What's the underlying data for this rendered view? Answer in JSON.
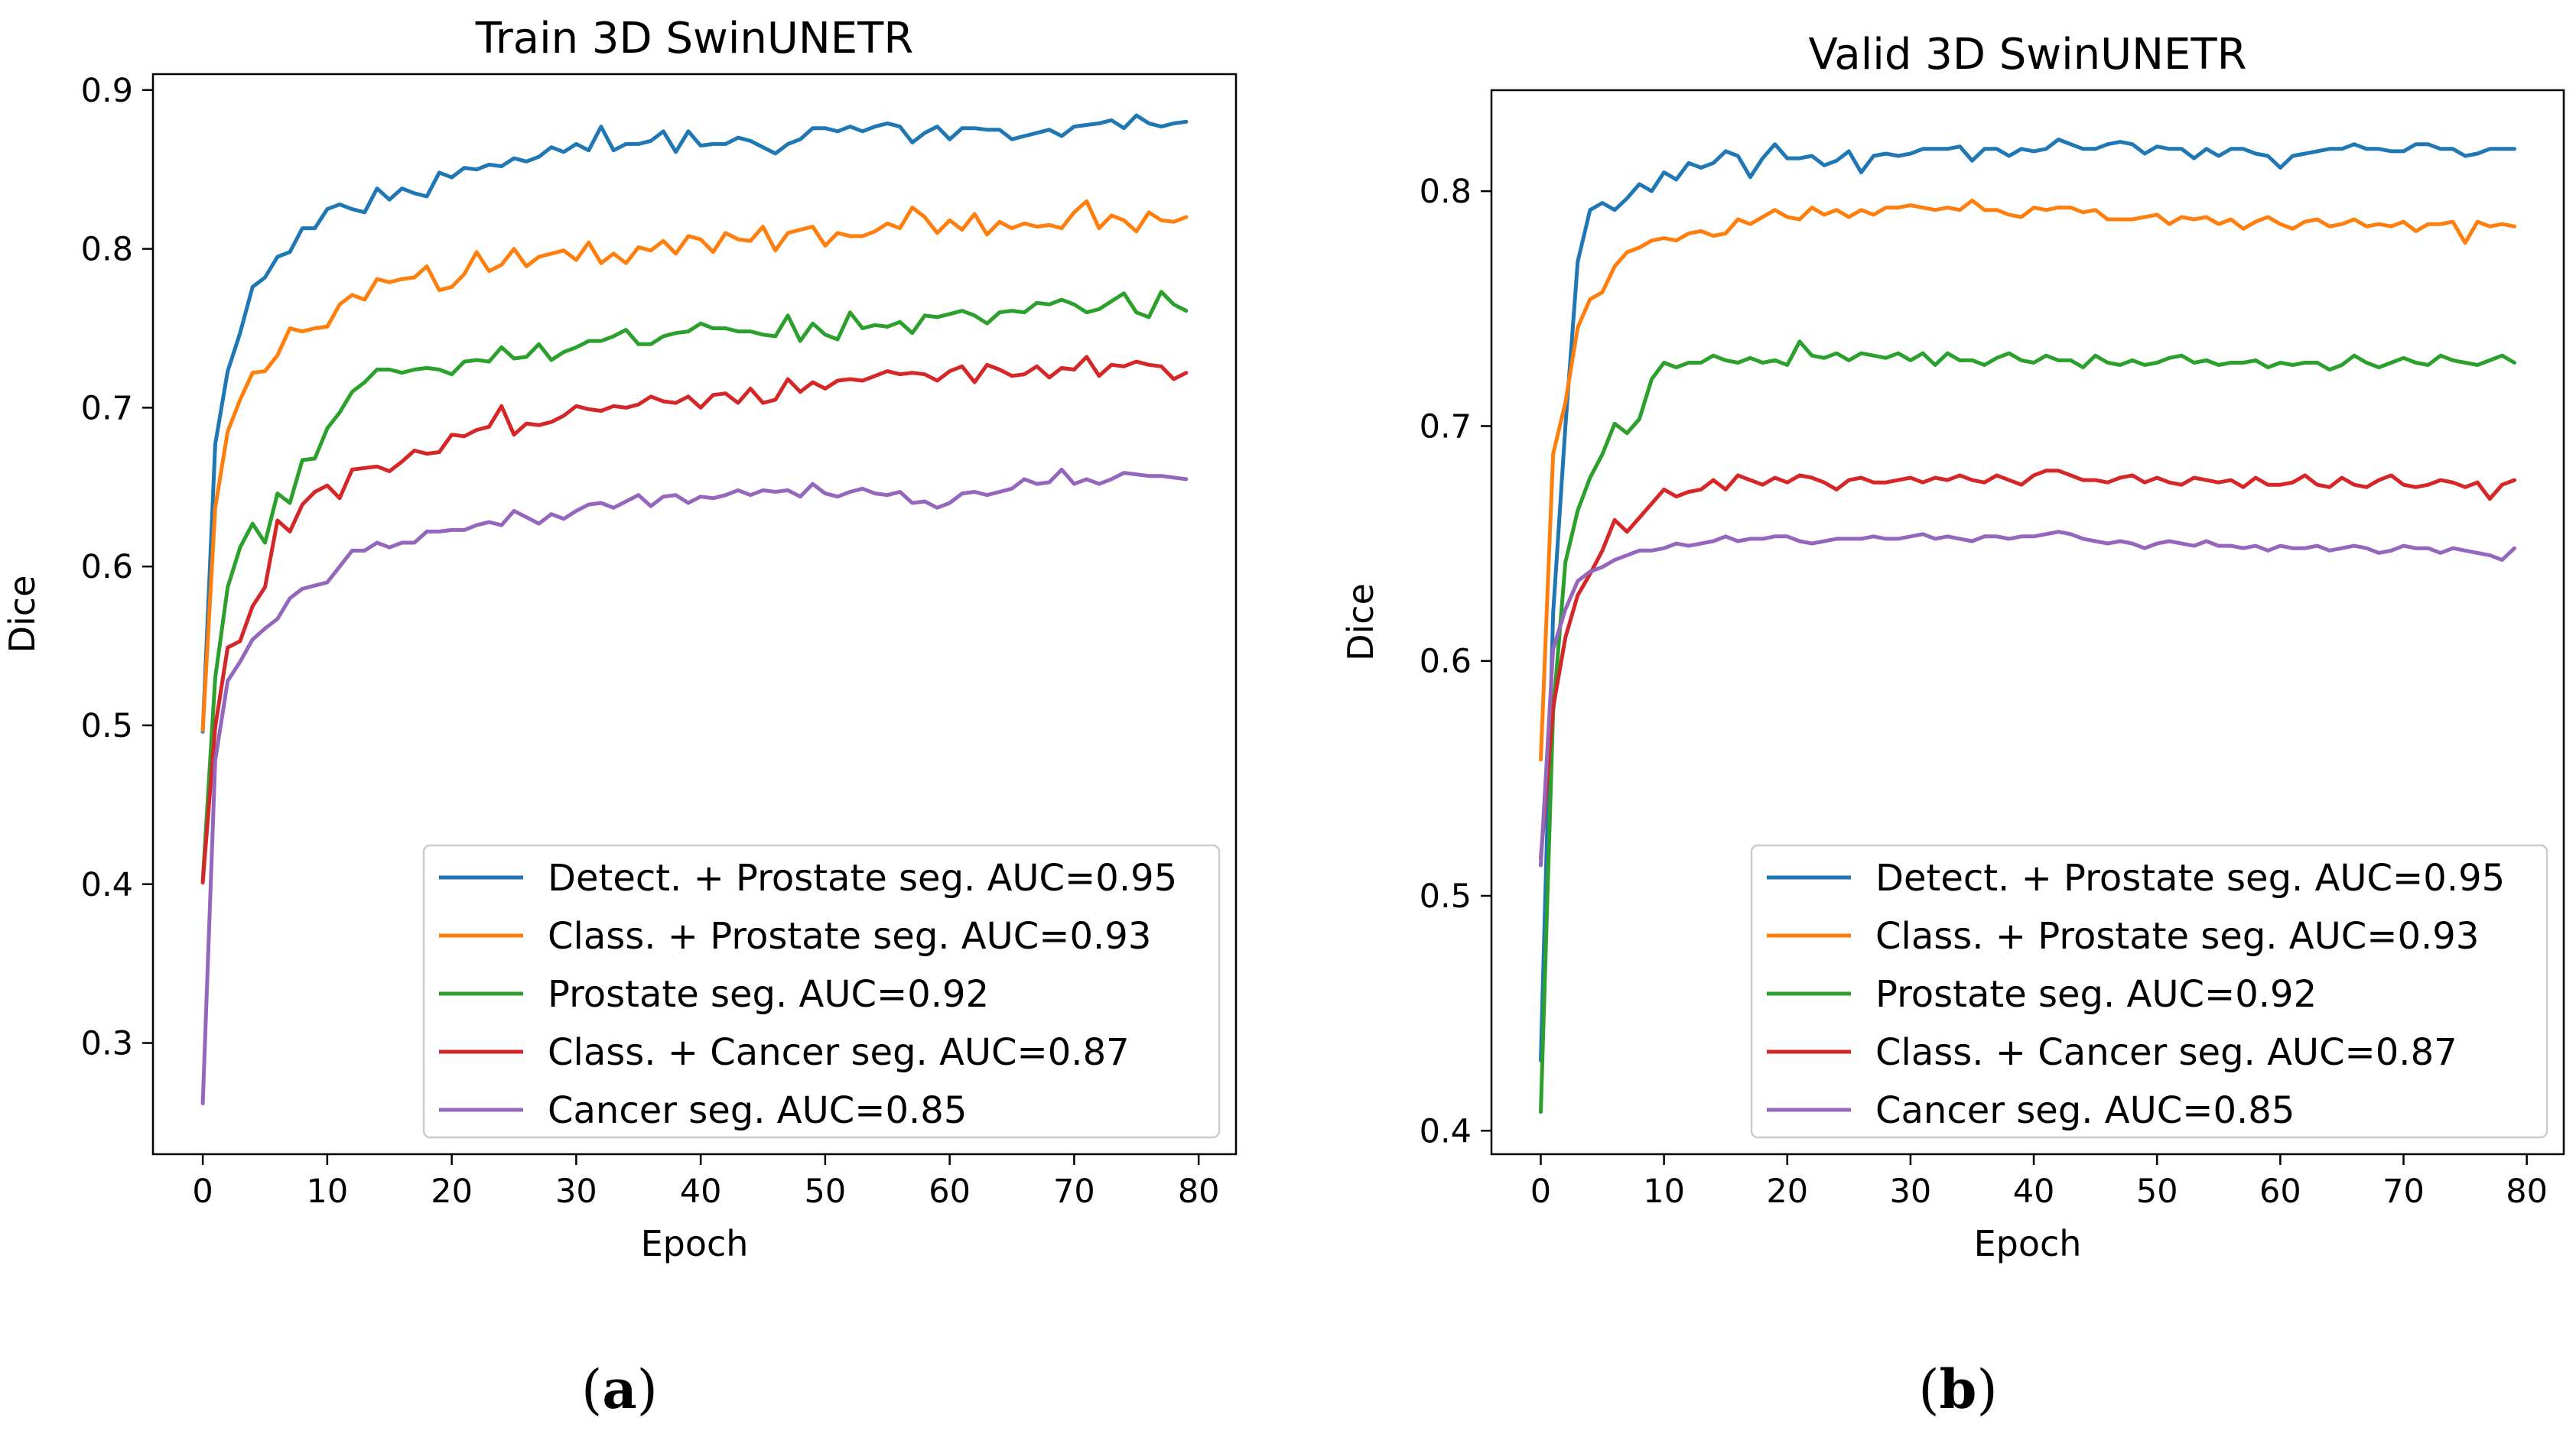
{
  "colors": {
    "detect_prostate": "#1f77b4",
    "class_prostate": "#ff7f0e",
    "prostate": "#2ca02c",
    "class_cancer": "#d62728",
    "cancer": "#9467bd"
  },
  "chart_data": [
    {
      "type": "line",
      "title": "Train 3D SwinUNETR",
      "xlabel": "Epoch",
      "ylabel": "Dice",
      "xlim": [
        -4,
        83
      ],
      "ylim": [
        0.23,
        0.91
      ],
      "xticks": [
        0,
        10,
        20,
        30,
        40,
        50,
        60,
        70,
        80
      ],
      "yticks": [
        0.3,
        0.4,
        0.5,
        0.6,
        0.7,
        0.8,
        0.9
      ],
      "grid": false,
      "legend_position": "lower-right",
      "caption": "a",
      "x": [
        0,
        1,
        2,
        3,
        4,
        5,
        6,
        7,
        8,
        9,
        10,
        11,
        12,
        13,
        14,
        15,
        16,
        17,
        18,
        19,
        20,
        21,
        22,
        23,
        24,
        25,
        26,
        27,
        28,
        29,
        30,
        31,
        32,
        33,
        34,
        35,
        36,
        37,
        38,
        39,
        40,
        41,
        42,
        43,
        44,
        45,
        46,
        47,
        48,
        49,
        50,
        51,
        52,
        53,
        54,
        55,
        56,
        57,
        58,
        59,
        60,
        61,
        62,
        63,
        64,
        65,
        66,
        67,
        68,
        69,
        70,
        71,
        72,
        73,
        74,
        75,
        76,
        77,
        78,
        79
      ],
      "series": [
        {
          "name": "Detect. + Prostate seg. AUC=0.95",
          "color_key": "detect_prostate",
          "values": [
            0.496,
            0.677,
            0.723,
            0.747,
            0.776,
            0.782,
            0.795,
            0.798,
            0.813,
            0.813,
            0.825,
            0.828,
            0.825,
            0.823,
            0.838,
            0.831,
            0.838,
            0.835,
            0.833,
            0.848,
            0.845,
            0.851,
            0.85,
            0.853,
            0.852,
            0.857,
            0.855,
            0.858,
            0.864,
            0.861,
            0.866,
            0.862,
            0.877,
            0.862,
            0.866,
            0.866,
            0.868,
            0.874,
            0.861,
            0.874,
            0.865,
            0.866,
            0.866,
            0.87,
            0.868,
            0.864,
            0.86,
            0.866,
            0.869,
            0.876,
            0.876,
            0.874,
            0.877,
            0.874,
            0.877,
            0.879,
            0.877,
            0.867,
            0.873,
            0.877,
            0.869,
            0.876,
            0.876,
            0.875,
            0.875,
            0.869,
            0.871,
            0.873,
            0.875,
            0.871,
            0.877,
            0.878,
            0.879,
            0.881,
            0.876,
            0.884,
            0.879,
            0.877,
            0.879,
            0.88
          ]
        },
        {
          "name": "Class. + Prostate seg. AUC=0.93",
          "color_key": "class_prostate",
          "values": [
            0.497,
            0.637,
            0.685,
            0.705,
            0.722,
            0.723,
            0.733,
            0.75,
            0.748,
            0.75,
            0.751,
            0.765,
            0.771,
            0.768,
            0.781,
            0.779,
            0.781,
            0.782,
            0.789,
            0.774,
            0.776,
            0.784,
            0.798,
            0.786,
            0.79,
            0.8,
            0.789,
            0.795,
            0.797,
            0.799,
            0.793,
            0.804,
            0.791,
            0.797,
            0.791,
            0.801,
            0.799,
            0.805,
            0.797,
            0.808,
            0.806,
            0.798,
            0.81,
            0.806,
            0.805,
            0.814,
            0.799,
            0.81,
            0.812,
            0.814,
            0.802,
            0.81,
            0.808,
            0.808,
            0.811,
            0.816,
            0.813,
            0.826,
            0.82,
            0.81,
            0.818,
            0.812,
            0.822,
            0.809,
            0.817,
            0.813,
            0.816,
            0.814,
            0.815,
            0.813,
            0.823,
            0.83,
            0.813,
            0.821,
            0.818,
            0.811,
            0.823,
            0.818,
            0.817,
            0.82
          ]
        },
        {
          "name": "Prostate seg. AUC=0.92",
          "color_key": "prostate",
          "values": [
            0.402,
            0.53,
            0.587,
            0.612,
            0.627,
            0.615,
            0.646,
            0.64,
            0.667,
            0.668,
            0.687,
            0.697,
            0.71,
            0.716,
            0.724,
            0.724,
            0.722,
            0.724,
            0.725,
            0.724,
            0.721,
            0.729,
            0.73,
            0.729,
            0.738,
            0.731,
            0.732,
            0.74,
            0.73,
            0.735,
            0.738,
            0.742,
            0.742,
            0.745,
            0.749,
            0.74,
            0.74,
            0.745,
            0.747,
            0.748,
            0.753,
            0.75,
            0.75,
            0.748,
            0.748,
            0.746,
            0.745,
            0.758,
            0.742,
            0.753,
            0.746,
            0.743,
            0.76,
            0.75,
            0.752,
            0.751,
            0.754,
            0.747,
            0.758,
            0.757,
            0.759,
            0.761,
            0.758,
            0.753,
            0.76,
            0.761,
            0.76,
            0.766,
            0.765,
            0.768,
            0.765,
            0.76,
            0.762,
            0.767,
            0.772,
            0.76,
            0.757,
            0.773,
            0.765,
            0.761
          ]
        },
        {
          "name": "Class. + Cancer seg. AUC=0.87",
          "color_key": "class_cancer",
          "values": [
            0.401,
            0.499,
            0.549,
            0.553,
            0.575,
            0.587,
            0.629,
            0.622,
            0.639,
            0.647,
            0.651,
            0.643,
            0.661,
            0.662,
            0.663,
            0.66,
            0.666,
            0.673,
            0.671,
            0.672,
            0.683,
            0.682,
            0.686,
            0.688,
            0.701,
            0.683,
            0.69,
            0.689,
            0.691,
            0.695,
            0.701,
            0.699,
            0.698,
            0.701,
            0.7,
            0.702,
            0.707,
            0.704,
            0.703,
            0.707,
            0.7,
            0.708,
            0.709,
            0.703,
            0.712,
            0.703,
            0.705,
            0.718,
            0.71,
            0.716,
            0.712,
            0.717,
            0.718,
            0.717,
            0.72,
            0.723,
            0.721,
            0.722,
            0.721,
            0.717,
            0.723,
            0.726,
            0.716,
            0.727,
            0.724,
            0.72,
            0.721,
            0.726,
            0.719,
            0.725,
            0.724,
            0.732,
            0.72,
            0.727,
            0.726,
            0.729,
            0.727,
            0.726,
            0.718,
            0.722
          ]
        },
        {
          "name": "Cancer seg. AUC=0.85",
          "color_key": "cancer",
          "values": [
            0.262,
            0.478,
            0.528,
            0.54,
            0.554,
            0.561,
            0.567,
            0.58,
            0.586,
            0.588,
            0.59,
            0.6,
            0.61,
            0.61,
            0.615,
            0.612,
            0.615,
            0.615,
            0.622,
            0.622,
            0.623,
            0.623,
            0.626,
            0.628,
            0.626,
            0.635,
            0.631,
            0.627,
            0.633,
            0.63,
            0.635,
            0.639,
            0.64,
            0.637,
            0.641,
            0.645,
            0.638,
            0.644,
            0.645,
            0.64,
            0.644,
            0.643,
            0.645,
            0.648,
            0.645,
            0.648,
            0.647,
            0.648,
            0.644,
            0.652,
            0.646,
            0.644,
            0.647,
            0.649,
            0.646,
            0.645,
            0.647,
            0.64,
            0.641,
            0.637,
            0.64,
            0.646,
            0.647,
            0.645,
            0.647,
            0.649,
            0.655,
            0.652,
            0.653,
            0.661,
            0.652,
            0.655,
            0.652,
            0.655,
            0.659,
            0.658,
            0.657,
            0.657,
            0.656,
            0.655
          ]
        }
      ]
    },
    {
      "type": "line",
      "title": "Valid 3D SwinUNETR",
      "xlabel": "Epoch",
      "ylabel": "Dice",
      "xlim": [
        -4,
        83
      ],
      "ylim": [
        0.39,
        0.843
      ],
      "xticks": [
        0,
        10,
        20,
        30,
        40,
        50,
        60,
        70,
        80
      ],
      "yticks": [
        0.4,
        0.5,
        0.6,
        0.7,
        0.8
      ],
      "grid": false,
      "legend_position": "lower-right",
      "caption": "b",
      "x": [
        0,
        1,
        2,
        3,
        4,
        5,
        6,
        7,
        8,
        9,
        10,
        11,
        12,
        13,
        14,
        15,
        16,
        17,
        18,
        19,
        20,
        21,
        22,
        23,
        24,
        25,
        26,
        27,
        28,
        29,
        30,
        31,
        32,
        33,
        34,
        35,
        36,
        37,
        38,
        39,
        40,
        41,
        42,
        43,
        44,
        45,
        46,
        47,
        48,
        49,
        50,
        51,
        52,
        53,
        54,
        55,
        56,
        57,
        58,
        59,
        60,
        61,
        62,
        63,
        64,
        65,
        66,
        67,
        68,
        69,
        70,
        71,
        72,
        73,
        74,
        75,
        76,
        77,
        78,
        79
      ],
      "series": [
        {
          "name": "Detect. + Prostate seg. AUC=0.95",
          "color_key": "detect_prostate",
          "values": [
            0.43,
            0.62,
            0.7,
            0.77,
            0.792,
            0.795,
            0.792,
            0.797,
            0.803,
            0.8,
            0.808,
            0.805,
            0.812,
            0.81,
            0.812,
            0.817,
            0.815,
            0.806,
            0.814,
            0.82,
            0.814,
            0.814,
            0.815,
            0.811,
            0.813,
            0.817,
            0.808,
            0.815,
            0.816,
            0.815,
            0.816,
            0.818,
            0.818,
            0.818,
            0.819,
            0.813,
            0.818,
            0.818,
            0.815,
            0.818,
            0.817,
            0.818,
            0.822,
            0.82,
            0.818,
            0.818,
            0.82,
            0.821,
            0.82,
            0.816,
            0.819,
            0.818,
            0.818,
            0.814,
            0.818,
            0.815,
            0.818,
            0.818,
            0.816,
            0.815,
            0.81,
            0.815,
            0.816,
            0.817,
            0.818,
            0.818,
            0.82,
            0.818,
            0.818,
            0.817,
            0.817,
            0.82,
            0.82,
            0.818,
            0.818,
            0.815,
            0.816,
            0.818,
            0.818,
            0.818
          ]
        },
        {
          "name": "Class. + Prostate seg. AUC=0.93",
          "color_key": "class_prostate",
          "values": [
            0.558,
            0.688,
            0.71,
            0.742,
            0.754,
            0.757,
            0.768,
            0.774,
            0.776,
            0.779,
            0.78,
            0.779,
            0.782,
            0.783,
            0.781,
            0.782,
            0.788,
            0.786,
            0.789,
            0.792,
            0.789,
            0.788,
            0.793,
            0.79,
            0.792,
            0.789,
            0.792,
            0.79,
            0.793,
            0.793,
            0.794,
            0.793,
            0.792,
            0.793,
            0.792,
            0.796,
            0.792,
            0.792,
            0.79,
            0.789,
            0.793,
            0.792,
            0.793,
            0.793,
            0.791,
            0.792,
            0.788,
            0.788,
            0.788,
            0.789,
            0.79,
            0.786,
            0.789,
            0.788,
            0.789,
            0.786,
            0.788,
            0.784,
            0.787,
            0.789,
            0.786,
            0.784,
            0.787,
            0.788,
            0.785,
            0.786,
            0.788,
            0.785,
            0.786,
            0.785,
            0.787,
            0.783,
            0.786,
            0.786,
            0.787,
            0.778,
            0.787,
            0.785,
            0.786,
            0.785
          ]
        },
        {
          "name": "Prostate seg. AUC=0.92",
          "color_key": "prostate",
          "values": [
            0.408,
            0.578,
            0.642,
            0.664,
            0.678,
            0.688,
            0.701,
            0.697,
            0.703,
            0.72,
            0.727,
            0.725,
            0.727,
            0.727,
            0.73,
            0.728,
            0.727,
            0.729,
            0.727,
            0.728,
            0.726,
            0.736,
            0.73,
            0.729,
            0.731,
            0.728,
            0.731,
            0.73,
            0.729,
            0.731,
            0.728,
            0.731,
            0.726,
            0.731,
            0.728,
            0.728,
            0.726,
            0.729,
            0.731,
            0.728,
            0.727,
            0.73,
            0.728,
            0.728,
            0.725,
            0.73,
            0.727,
            0.726,
            0.728,
            0.726,
            0.727,
            0.729,
            0.73,
            0.727,
            0.728,
            0.726,
            0.727,
            0.727,
            0.728,
            0.725,
            0.727,
            0.726,
            0.727,
            0.727,
            0.724,
            0.726,
            0.73,
            0.727,
            0.725,
            0.727,
            0.729,
            0.727,
            0.726,
            0.73,
            0.728,
            0.727,
            0.726,
            0.728,
            0.73,
            0.727
          ]
        },
        {
          "name": "Class. + Cancer seg. AUC=0.87",
          "color_key": "class_cancer",
          "values": [
            0.516,
            0.58,
            0.61,
            0.628,
            0.637,
            0.647,
            0.66,
            0.655,
            0.661,
            0.667,
            0.673,
            0.67,
            0.672,
            0.673,
            0.677,
            0.673,
            0.679,
            0.677,
            0.675,
            0.678,
            0.676,
            0.679,
            0.678,
            0.676,
            0.673,
            0.677,
            0.678,
            0.676,
            0.676,
            0.677,
            0.678,
            0.676,
            0.678,
            0.677,
            0.679,
            0.677,
            0.676,
            0.679,
            0.677,
            0.675,
            0.679,
            0.681,
            0.681,
            0.679,
            0.677,
            0.677,
            0.676,
            0.678,
            0.679,
            0.676,
            0.678,
            0.676,
            0.675,
            0.678,
            0.677,
            0.676,
            0.677,
            0.674,
            0.678,
            0.675,
            0.675,
            0.676,
            0.679,
            0.675,
            0.674,
            0.678,
            0.675,
            0.674,
            0.677,
            0.679,
            0.675,
            0.674,
            0.675,
            0.677,
            0.676,
            0.674,
            0.676,
            0.669,
            0.675,
            0.677
          ]
        },
        {
          "name": "Cancer seg. AUC=0.85",
          "color_key": "cancer",
          "values": [
            0.513,
            0.605,
            0.622,
            0.634,
            0.638,
            0.64,
            0.643,
            0.645,
            0.647,
            0.647,
            0.648,
            0.65,
            0.649,
            0.65,
            0.651,
            0.653,
            0.651,
            0.652,
            0.652,
            0.653,
            0.653,
            0.651,
            0.65,
            0.651,
            0.652,
            0.652,
            0.652,
            0.653,
            0.652,
            0.652,
            0.653,
            0.654,
            0.652,
            0.653,
            0.652,
            0.651,
            0.653,
            0.653,
            0.652,
            0.653,
            0.653,
            0.654,
            0.655,
            0.654,
            0.652,
            0.651,
            0.65,
            0.651,
            0.65,
            0.648,
            0.65,
            0.651,
            0.65,
            0.649,
            0.651,
            0.649,
            0.649,
            0.648,
            0.649,
            0.647,
            0.649,
            0.648,
            0.648,
            0.649,
            0.647,
            0.648,
            0.649,
            0.648,
            0.646,
            0.647,
            0.649,
            0.648,
            0.648,
            0.646,
            0.648,
            0.647,
            0.646,
            0.645,
            0.643,
            0.648
          ]
        }
      ]
    }
  ]
}
